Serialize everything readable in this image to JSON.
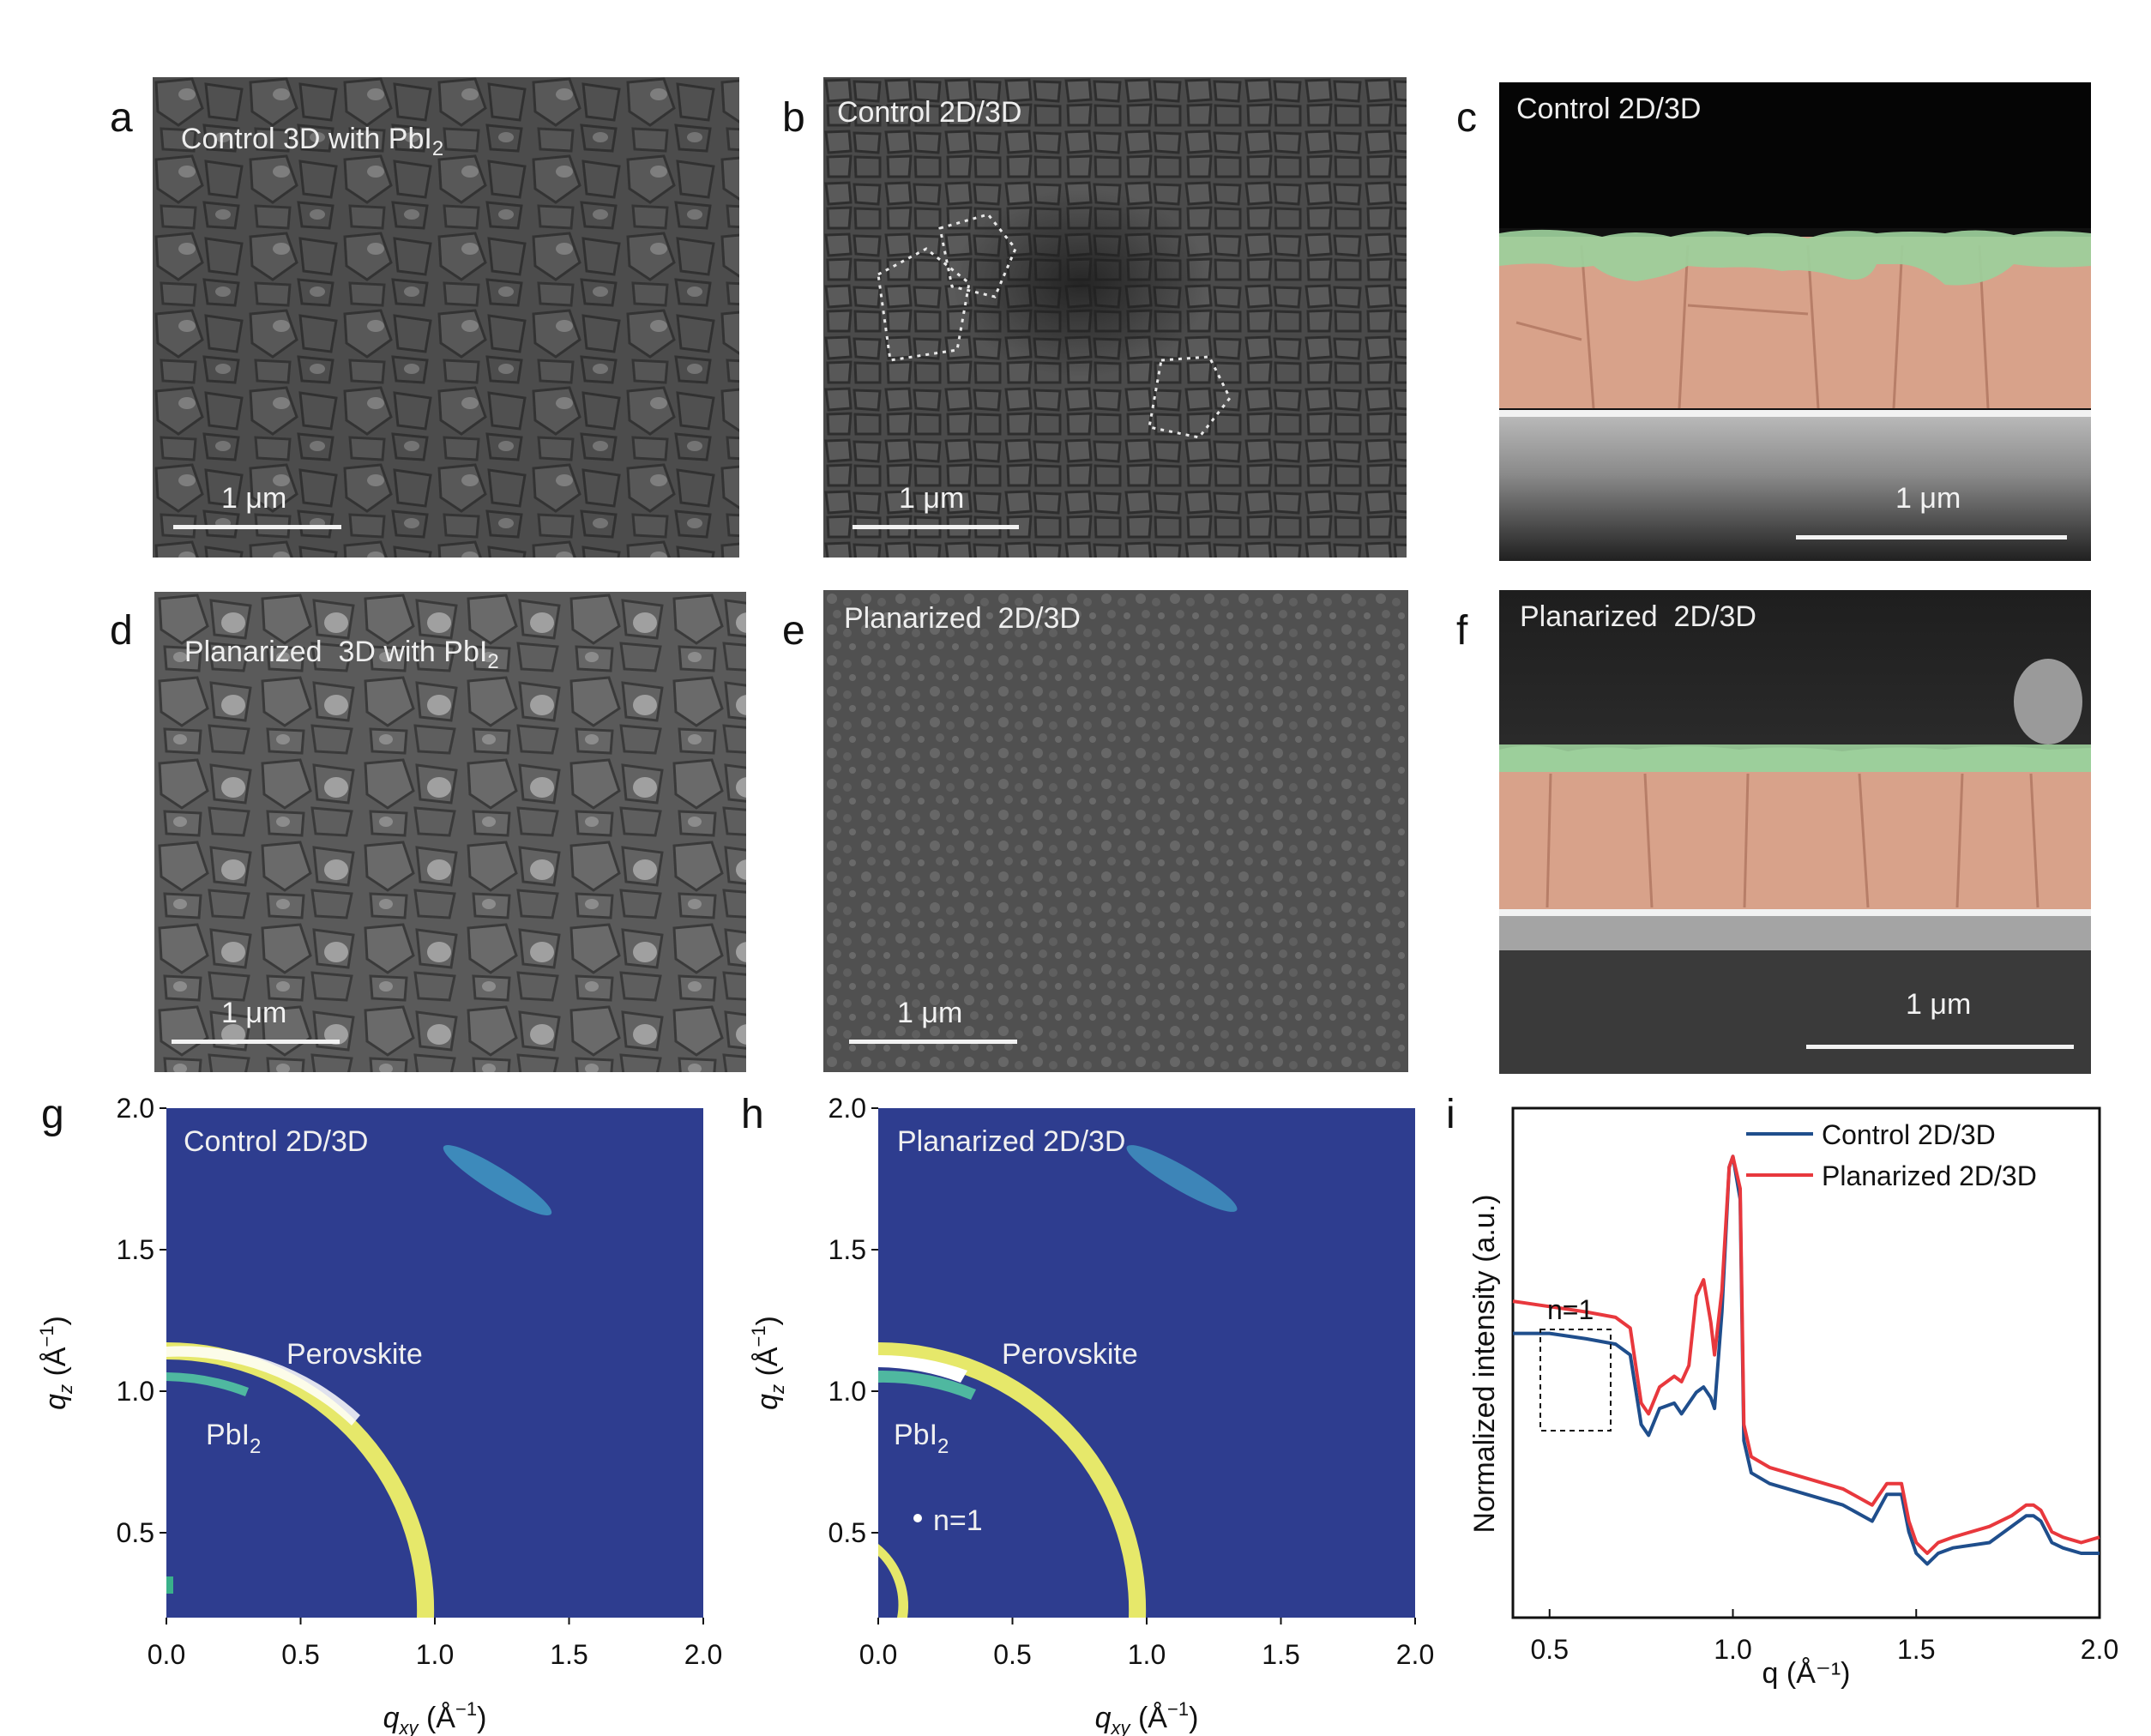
{
  "panels": {
    "a": {
      "label": "a",
      "title": "Control 3D with PbI",
      "title_sub": "2",
      "scale": "1 μm"
    },
    "b": {
      "label": "b",
      "title": "Control 2D/3D",
      "scale": "1 μm"
    },
    "c": {
      "label": "c",
      "title": "Control 2D/3D",
      "scale": "1 μm"
    },
    "d": {
      "label": "d",
      "title": "Planarized  3D with PbI",
      "title_sub": "2",
      "scale": "1 μm"
    },
    "e": {
      "label": "e",
      "title": "Planarized  2D/3D",
      "scale": "1 μm"
    },
    "f": {
      "label": "f",
      "title": "Planarized  2D/3D",
      "scale": "1 μm"
    },
    "g": {
      "label": "g",
      "title": "Control 2D/3D",
      "perovskite": "Perovskite",
      "pbi2": "PbI",
      "pbi2_sub": "2"
    },
    "h": {
      "label": "h",
      "title": "Planarized  2D/3D",
      "perovskite": "Perovskite",
      "pbi2": "PbI",
      "pbi2_sub": "2",
      "n1": "n=1"
    },
    "i": {
      "label": "i",
      "n1": "n=1"
    }
  },
  "giwaxs_axes": {
    "x_ticks": [
      "0.0",
      "0.5",
      "1.0",
      "1.5",
      "2.0"
    ],
    "y_ticks": [
      "2.0",
      "1.5",
      "1.0",
      "0.5"
    ],
    "xlabel": "q",
    "xlabel_sub": "xy",
    "xlabel_unit": " (Å",
    "xlabel_exp": "−1",
    "xlabel_close": ")",
    "ylabel": "q",
    "ylabel_sub": "z",
    "ylabel_unit": " (Å",
    "ylabel_exp": "−1",
    "ylabel_close": ")",
    "xlim": [
      0,
      2.0
    ],
    "ylim": [
      0.2,
      2.0
    ]
  },
  "colors": {
    "giwaxs_bg": "#2e3d8f",
    "control": "#1f4e8c",
    "planarized": "#e8383d",
    "perovskite_layer": "#d6a08a",
    "two_d_layer": "#9ccf9b"
  },
  "chart_data": {
    "type": "line",
    "xlabel": "q (Å⁻¹)",
    "ylabel": "Normalized intensity (a.u.)",
    "xlim": [
      0.4,
      2.0
    ],
    "x_ticks": [
      "0.5",
      "1.0",
      "1.5",
      "2.0"
    ],
    "legend_position": "top-right",
    "series": [
      {
        "name": "Control 2D/3D",
        "color": "#1f4e8c",
        "x": [
          0.4,
          0.5,
          0.6,
          0.68,
          0.72,
          0.75,
          0.77,
          0.8,
          0.84,
          0.86,
          0.88,
          0.9,
          0.92,
          0.94,
          0.95,
          0.97,
          0.99,
          1.0,
          1.02,
          1.03,
          1.05,
          1.1,
          1.2,
          1.3,
          1.38,
          1.42,
          1.46,
          1.48,
          1.5,
          1.53,
          1.56,
          1.6,
          1.7,
          1.76,
          1.8,
          1.82,
          1.84,
          1.87,
          1.9,
          1.95,
          2.0
        ],
        "y": [
          0.63,
          0.63,
          0.62,
          0.61,
          0.59,
          0.46,
          0.44,
          0.49,
          0.5,
          0.48,
          0.5,
          0.52,
          0.53,
          0.51,
          0.49,
          0.67,
          0.94,
          0.96,
          0.88,
          0.43,
          0.37,
          0.35,
          0.33,
          0.31,
          0.28,
          0.33,
          0.33,
          0.26,
          0.22,
          0.2,
          0.22,
          0.23,
          0.24,
          0.27,
          0.29,
          0.29,
          0.28,
          0.24,
          0.23,
          0.22,
          0.22
        ]
      },
      {
        "name": "Planarized  2D/3D",
        "color": "#e8383d",
        "x": [
          0.4,
          0.5,
          0.6,
          0.68,
          0.72,
          0.75,
          0.77,
          0.8,
          0.84,
          0.86,
          0.88,
          0.9,
          0.92,
          0.94,
          0.95,
          0.97,
          0.99,
          1.0,
          1.02,
          1.03,
          1.05,
          1.1,
          1.2,
          1.3,
          1.38,
          1.42,
          1.46,
          1.48,
          1.5,
          1.53,
          1.56,
          1.6,
          1.7,
          1.76,
          1.8,
          1.82,
          1.84,
          1.87,
          1.9,
          1.95,
          2.0
        ],
        "y": [
          0.69,
          0.68,
          0.67,
          0.66,
          0.64,
          0.5,
          0.48,
          0.53,
          0.55,
          0.54,
          0.57,
          0.7,
          0.73,
          0.65,
          0.59,
          0.71,
          0.94,
          0.96,
          0.9,
          0.46,
          0.4,
          0.38,
          0.36,
          0.34,
          0.31,
          0.35,
          0.35,
          0.28,
          0.24,
          0.22,
          0.24,
          0.25,
          0.27,
          0.29,
          0.31,
          0.31,
          0.3,
          0.26,
          0.25,
          0.24,
          0.25
        ]
      }
    ]
  }
}
